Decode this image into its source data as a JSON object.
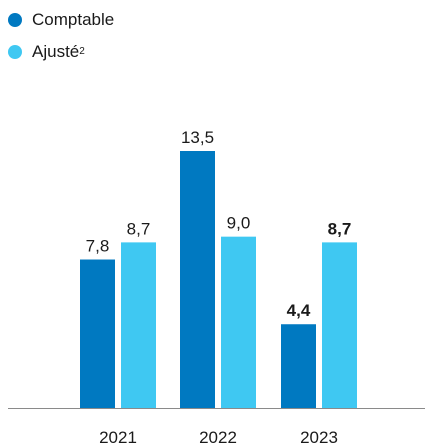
{
  "chart_data": {
    "type": "bar",
    "categories": [
      "2021",
      "2022",
      "2023"
    ],
    "series": [
      {
        "name": "Comptable",
        "values": [
          7.8,
          13.5,
          4.4
        ],
        "labels": [
          "7,8",
          "13,5",
          "4,4"
        ],
        "bold": [
          false,
          false,
          true
        ],
        "color": "#0079C1"
      },
      {
        "name": "Ajusté",
        "name_sup": "2",
        "values": [
          8.7,
          9.0,
          8.7
        ],
        "labels": [
          "8,7",
          "9,0",
          "8,7"
        ],
        "bold": [
          false,
          false,
          true
        ],
        "color": "#3FC8F2"
      }
    ],
    "title": "",
    "xlabel": "",
    "ylabel": "",
    "ylim": [
      0,
      13.5
    ],
    "grid": false,
    "legend": "top-left"
  }
}
